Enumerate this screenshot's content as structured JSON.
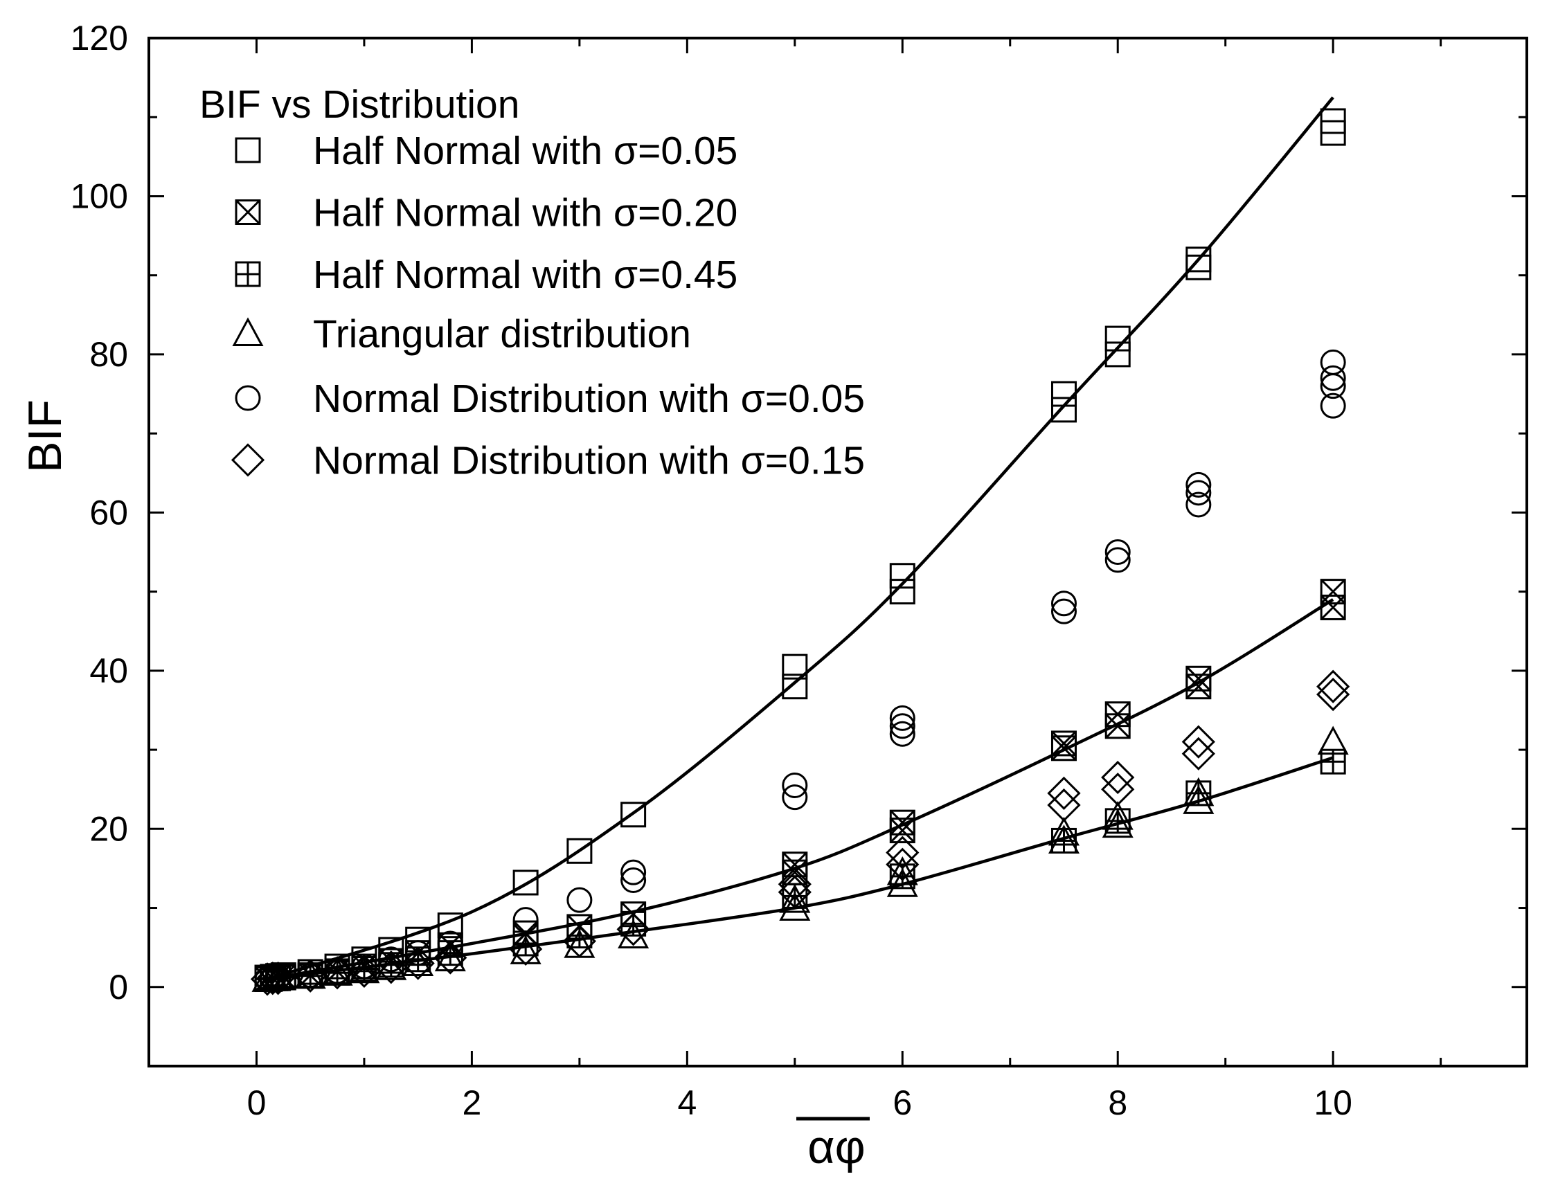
{
  "chart_data": {
    "type": "scatter",
    "title": "BIF vs Distribution",
    "xlabel": "αφ",
    "ylabel": "BIF",
    "xlim": [
      -1,
      11.8
    ],
    "ylim": [
      -10,
      120
    ],
    "xticks": [
      0,
      2,
      4,
      6,
      8,
      10
    ],
    "yticks": [
      0,
      20,
      40,
      60,
      80,
      100,
      120
    ],
    "x_tick_labels": [
      "0",
      "2",
      "4",
      "6",
      "8",
      "10"
    ],
    "y_tick_labels": [
      "0",
      "20",
      "40",
      "60",
      "80",
      "100",
      "120"
    ],
    "legend_position": "top-left",
    "series": [
      {
        "name": "Half Normal with σ=0.05",
        "marker": "square",
        "x": [
          0.1,
          0.1,
          0.15,
          0.2,
          0.25,
          0.5,
          0.75,
          1.0,
          1.25,
          1.5,
          1.8,
          2.5,
          3.0,
          3.5,
          5.0,
          5.0,
          6.0,
          6.0,
          7.5,
          7.5,
          8.0,
          8.0,
          8.75,
          8.75,
          10.0,
          10.0
        ],
        "y": [
          1.0,
          1.2,
          1.3,
          1.4,
          1.5,
          1.9,
          2.6,
          3.5,
          4.7,
          6.0,
          7.8,
          13.2,
          17.2,
          21.8,
          38.0,
          40.5,
          50.0,
          52.0,
          73.0,
          75.0,
          80.0,
          82.0,
          91.0,
          92.0,
          108.0,
          109.5
        ]
      },
      {
        "name": "Half Normal with σ=0.20",
        "marker": "square-x",
        "x": [
          0.1,
          0.15,
          0.2,
          0.25,
          0.5,
          0.75,
          1.0,
          1.25,
          1.5,
          1.8,
          2.5,
          3.0,
          3.5,
          5.0,
          5.0,
          6.0,
          6.0,
          7.5,
          7.5,
          8.0,
          8.0,
          8.75,
          8.75,
          10.0,
          10.0
        ],
        "y": [
          1.0,
          1.1,
          1.2,
          1.3,
          1.5,
          2.0,
          2.6,
          3.3,
          4.3,
          5.3,
          6.8,
          7.6,
          9.2,
          14.5,
          15.5,
          19.8,
          20.8,
          30.2,
          30.8,
          33.0,
          34.5,
          38.0,
          39.0,
          48.0,
          50.0
        ]
      },
      {
        "name": "Half Normal with σ=0.45",
        "marker": "square-plus",
        "x": [
          0.1,
          0.15,
          0.2,
          0.25,
          0.5,
          0.75,
          1.0,
          1.25,
          1.5,
          1.8,
          2.5,
          3.0,
          3.5,
          5.0,
          6.0,
          7.5,
          8.0,
          8.75,
          10.0
        ],
        "y": [
          1.0,
          1.1,
          1.1,
          1.2,
          1.4,
          1.8,
          2.3,
          2.8,
          3.5,
          4.3,
          5.5,
          6.5,
          8.0,
          11.5,
          14.0,
          18.5,
          21.0,
          24.5,
          28.5
        ]
      },
      {
        "name": "Triangular distribution",
        "marker": "triangle",
        "x": [
          0.1,
          0.15,
          0.2,
          0.5,
          0.75,
          1.0,
          1.25,
          1.5,
          1.8,
          2.5,
          3.0,
          3.5,
          5.0,
          5.0,
          6.0,
          6.0,
          7.5,
          7.5,
          8.0,
          8.0,
          8.75,
          8.75,
          10.0
        ],
        "y": [
          1.0,
          1.1,
          1.2,
          1.4,
          1.8,
          2.1,
          2.5,
          3.0,
          3.6,
          4.5,
          5.3,
          6.5,
          10.0,
          11.0,
          13.0,
          14.5,
          18.5,
          19.5,
          20.5,
          21.5,
          23.5,
          24.5,
          31.0
        ]
      },
      {
        "name": "Normal Distribution with σ=0.05",
        "marker": "circle",
        "x": [
          0.1,
          0.15,
          0.2,
          0.5,
          0.75,
          1.0,
          1.25,
          1.5,
          1.8,
          2.5,
          3.0,
          3.5,
          3.5,
          5.0,
          5.0,
          6.0,
          6.0,
          6.0,
          7.5,
          7.5,
          8.0,
          8.0,
          8.75,
          8.75,
          8.75,
          10.0,
          10.0,
          10.0,
          10.0
        ],
        "y": [
          1.0,
          1.1,
          1.2,
          1.5,
          2.0,
          2.6,
          3.5,
          4.3,
          5.5,
          8.5,
          11.0,
          13.5,
          14.5,
          24.0,
          25.5,
          32.0,
          33.0,
          34.0,
          47.5,
          48.5,
          54.0,
          55.0,
          61.0,
          62.5,
          63.5,
          73.5,
          76.0,
          77.0,
          79.0
        ]
      },
      {
        "name": "Normal Distribution with σ=0.15",
        "marker": "diamond",
        "x": [
          0.1,
          0.15,
          0.2,
          0.5,
          0.75,
          1.0,
          1.25,
          1.5,
          1.8,
          2.5,
          3.0,
          3.5,
          5.0,
          5.0,
          6.0,
          6.0,
          7.5,
          7.5,
          8.0,
          8.0,
          8.75,
          8.75,
          10.0,
          10.0
        ],
        "y": [
          1.0,
          1.1,
          1.1,
          1.4,
          1.8,
          2.0,
          2.5,
          3.0,
          3.7,
          4.8,
          5.8,
          7.3,
          12.0,
          13.0,
          15.5,
          17.0,
          23.0,
          24.5,
          25.0,
          26.5,
          29.5,
          31.0,
          37.0,
          38.0
        ]
      }
    ],
    "fit_curves": [
      {
        "name": "fit-upper",
        "x_range": [
          0.1,
          10
        ],
        "points": [
          [
            0.1,
            1.0
          ],
          [
            2,
            9.5
          ],
          [
            3.5,
            22.0
          ],
          [
            5,
            38.5
          ],
          [
            6,
            51.0
          ],
          [
            7.5,
            73.5
          ],
          [
            8.75,
            92.0
          ],
          [
            10,
            112.5
          ]
        ]
      },
      {
        "name": "fit-middle",
        "x_range": [
          0.1,
          10
        ],
        "points": [
          [
            0.1,
            1.0
          ],
          [
            2,
            5.5
          ],
          [
            3.5,
            9.5
          ],
          [
            5,
            15.0
          ],
          [
            6,
            20.5
          ],
          [
            7.5,
            30.0
          ],
          [
            8.75,
            38.5
          ],
          [
            10,
            49.0
          ]
        ]
      },
      {
        "name": "fit-lower",
        "x_range": [
          0.1,
          10
        ],
        "points": [
          [
            0.1,
            1.0
          ],
          [
            2,
            4.2
          ],
          [
            3.5,
            7.0
          ],
          [
            5,
            10.0
          ],
          [
            6,
            13.0
          ],
          [
            7.5,
            18.8
          ],
          [
            8.75,
            23.5
          ],
          [
            10,
            29.0
          ]
        ]
      }
    ]
  }
}
